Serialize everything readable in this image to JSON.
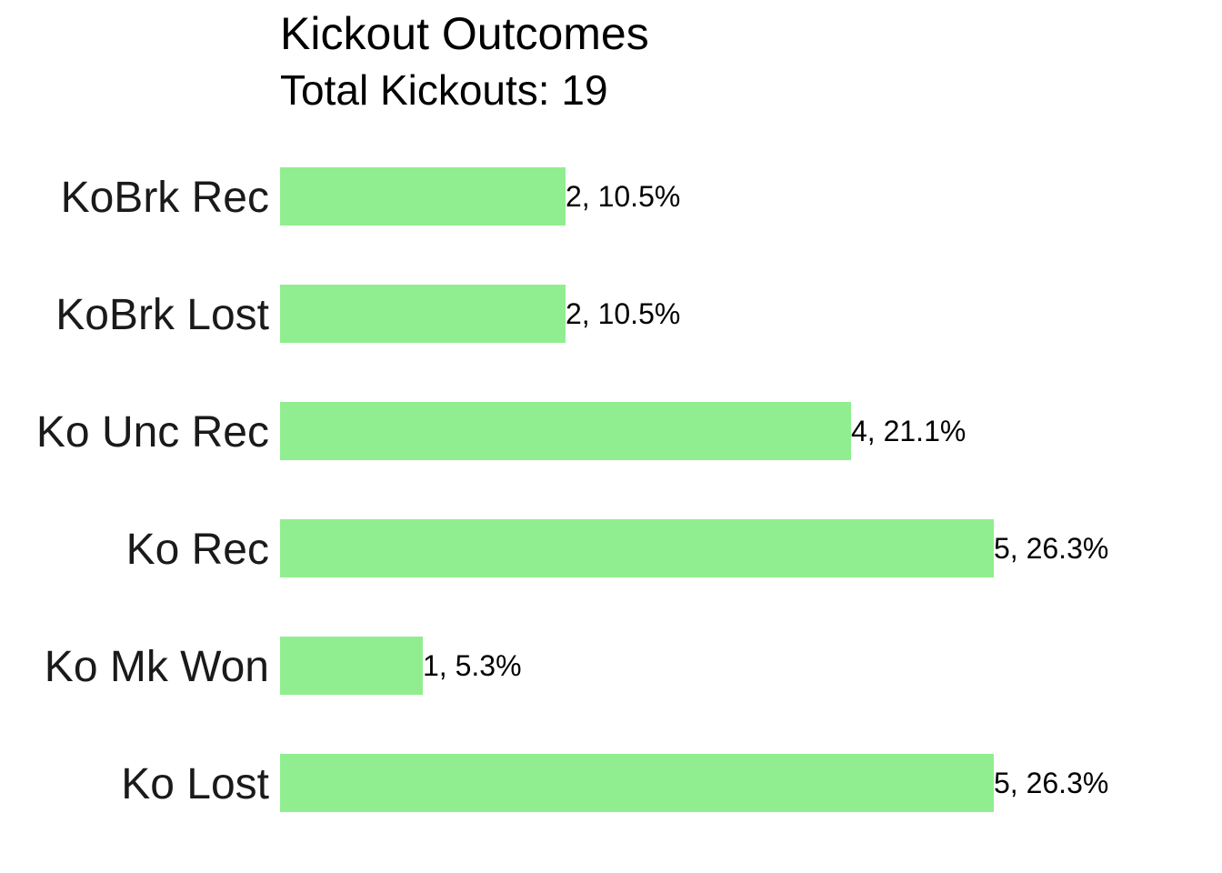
{
  "chart_data": {
    "type": "bar",
    "orientation": "horizontal",
    "title": "Kickout Outcomes",
    "subtitle": "Total Kickouts: 19",
    "categories": [
      "KoBrk Rec",
      "KoBrk Lost",
      "Ko Unc Rec",
      "Ko Rec",
      "Ko Mk Won",
      "Ko Lost"
    ],
    "values": [
      2,
      2,
      4,
      5,
      1,
      5
    ],
    "data_labels": [
      "2, 10.5%",
      "2, 10.5%",
      "4, 21.1%",
      "5, 26.3%",
      "1, 5.3%",
      "5, 26.3%"
    ],
    "xlim": [
      0,
      5
    ],
    "grid": false,
    "legend": "none",
    "bar_color": "#90EE90"
  }
}
